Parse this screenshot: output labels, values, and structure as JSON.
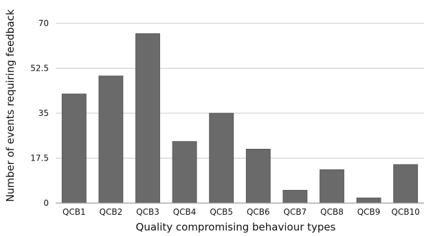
{
  "chart_data": {
    "type": "bar",
    "title": "",
    "xlabel": "Quality compromising behaviour types",
    "ylabel": "Number of events requiring feedback",
    "categories": [
      "QCB1",
      "QCB2",
      "QCB3",
      "QCB4",
      "QCB5",
      "QCB6",
      "QCB7",
      "QCB8",
      "QCB9",
      "QCB10"
    ],
    "values": [
      42.5,
      49.5,
      66,
      24,
      35,
      21,
      5,
      13,
      2,
      15
    ],
    "y_ticks": [
      0,
      17.5,
      35,
      52.5,
      70
    ],
    "y_tick_labels": [
      "0",
      "17.5",
      "35",
      "52.5",
      "70"
    ],
    "ylim": [
      0,
      70
    ],
    "grid": true,
    "legend": "none",
    "colors": {
      "bar": "#6a6a6a",
      "bar_edge": "#4d4d4d",
      "grid": "#c8c8c8",
      "axis": "#9a9a9a",
      "text": "#111111"
    }
  }
}
